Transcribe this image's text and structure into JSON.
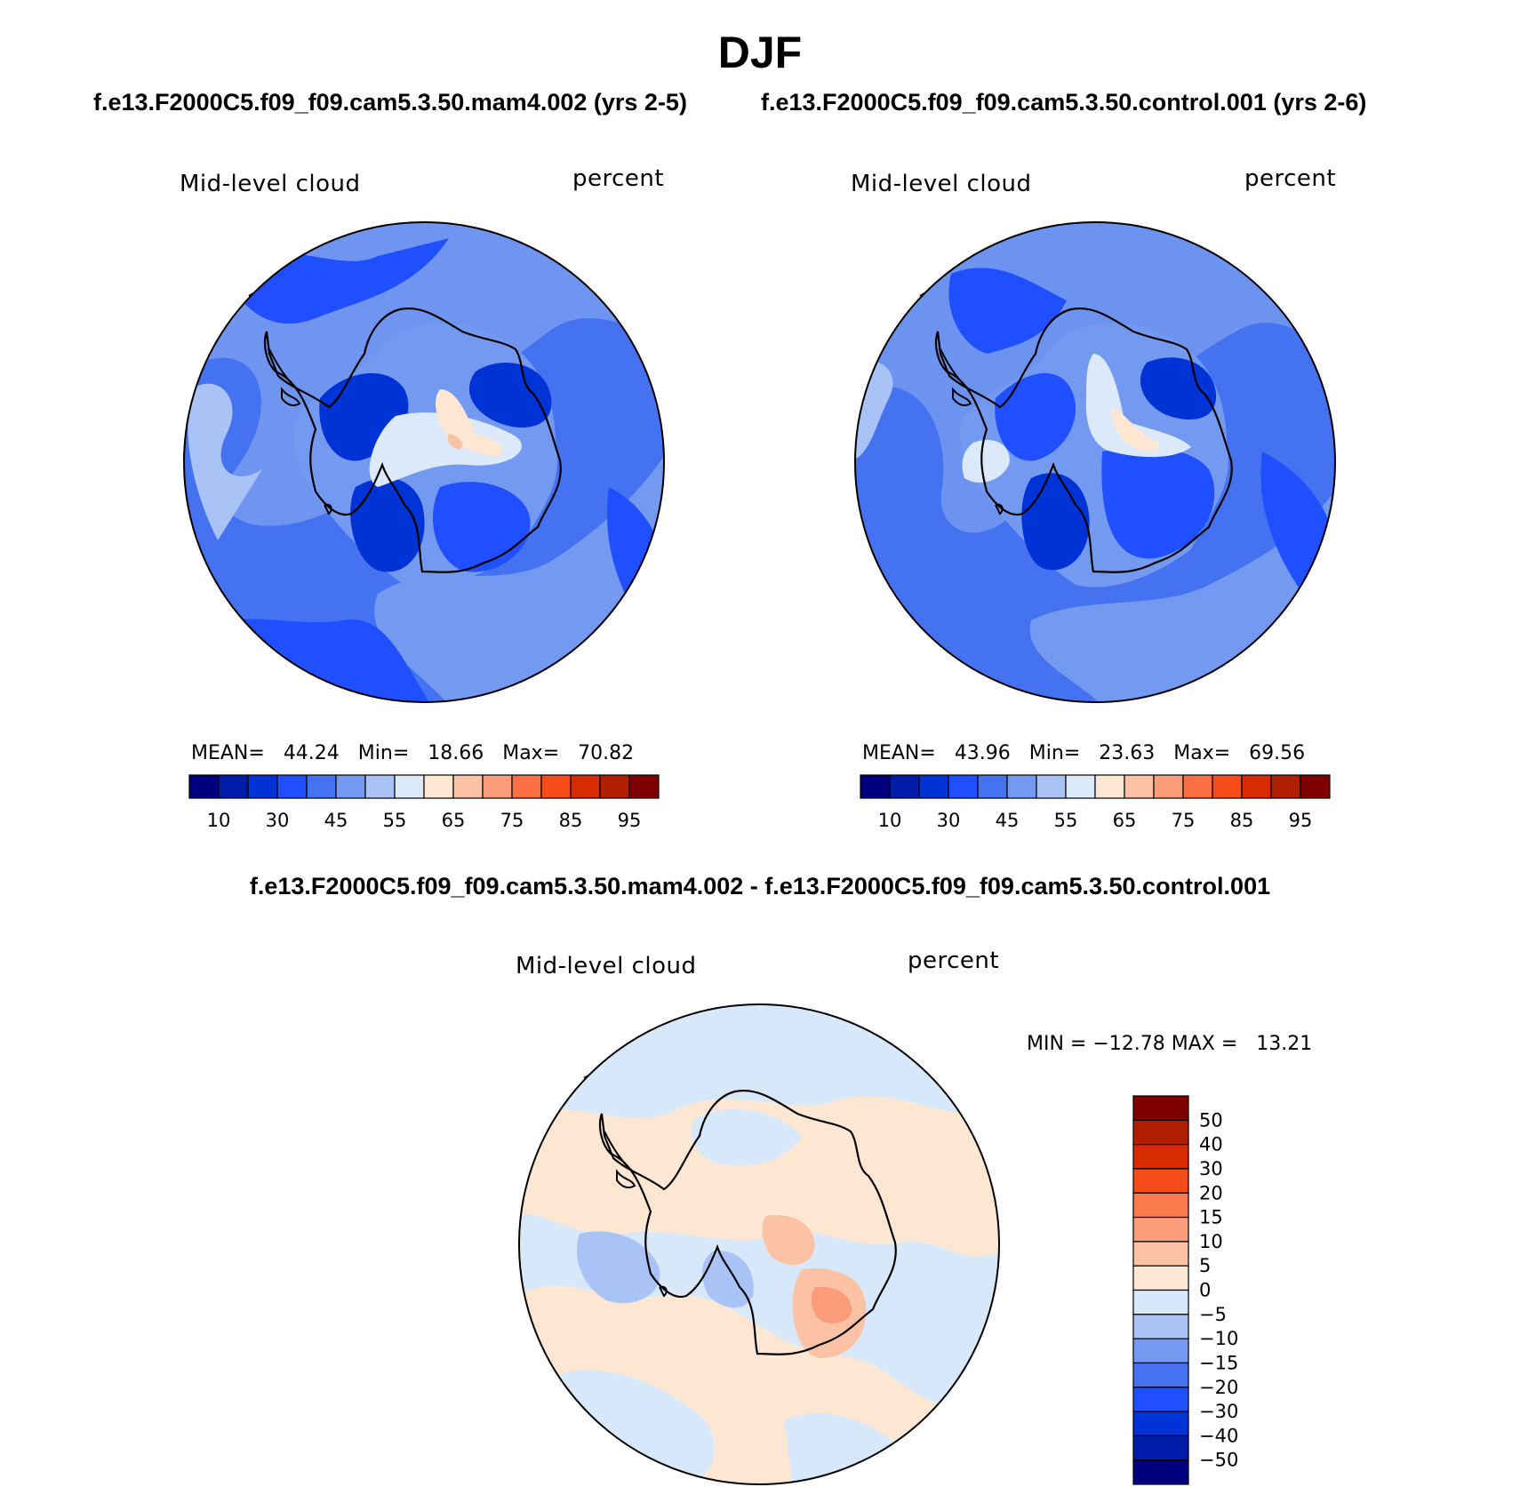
{
  "title": "DJF",
  "panels": [
    {
      "case_label": "f.e13.F2000C5.f09_f09.cam5.3.50.mam4.002 (yrs 2-5)",
      "variable": "Mid-level cloud",
      "units": "percent",
      "mean_label": "MEAN=",
      "mean": "44.24",
      "min_label": "Min=",
      "min": "18.66",
      "max_label": "Max=",
      "max": "70.82"
    },
    {
      "case_label": "f.e13.F2000C5.f09_f09.cam5.3.50.control.001 (yrs 2-6)",
      "variable": "Mid-level cloud",
      "units": "percent",
      "mean_label": "MEAN=",
      "mean": "43.96",
      "min_label": "Min=",
      "min": "23.63",
      "max_label": "Max=",
      "max": "69.56"
    }
  ],
  "colorbar_abs": {
    "colors": [
      "#00007f",
      "#001ca8",
      "#0033d6",
      "#1f4fff",
      "#4472f0",
      "#7499f0",
      "#a9c3f7",
      "#dbe9fb",
      "#fde7d2",
      "#fcc2a6",
      "#fb9d7a",
      "#fa6f43",
      "#f54c1a",
      "#d82b04",
      "#b11f02",
      "#7f0000"
    ],
    "labels": [
      "10",
      "30",
      "45",
      "55",
      "65",
      "75",
      "85",
      "95"
    ]
  },
  "difference": {
    "title": "f.e13.F2000C5.f09_f09.cam5.3.50.mam4.002 - f.e13.F2000C5.f09_f09.cam5.3.50.control.001",
    "variable": "Mid-level cloud",
    "units": "percent",
    "minmax": "MIN = −12.78 MAX =   13.21"
  },
  "colorbar_diff": {
    "colors": [
      "#7f0000",
      "#b11f02",
      "#d82b04",
      "#f54c1a",
      "#fa7a4e",
      "#fb9d7a",
      "#fcc2a6",
      "#fde7d2",
      "#d8e8fb",
      "#a9c3f7",
      "#7499f0",
      "#4472f0",
      "#1f4fff",
      "#0033d6",
      "#001ca8",
      "#00007f"
    ],
    "labels": [
      "50",
      "40",
      "30",
      "20",
      "15",
      "10",
      "5",
      "0",
      "−5",
      "−10",
      "−15",
      "−20",
      "−30",
      "−40",
      "−50"
    ]
  },
  "map_colors": {
    "deep": "#0033d6",
    "mid": "#1f4fff",
    "medium": "#4472f0",
    "light": "#7499f0",
    "pale": "#a9c3f7",
    "whiteish": "#dbe9fb",
    "cream": "#fde7d2",
    "peach": "#fcc2a6",
    "diff_neg": "#d8e8fb",
    "diff_pos": "#fde7d2",
    "diff_neg2": "#a9c3f7",
    "diff_pos2": "#fcc2a6",
    "diff_pos3": "#fb9d7a"
  }
}
